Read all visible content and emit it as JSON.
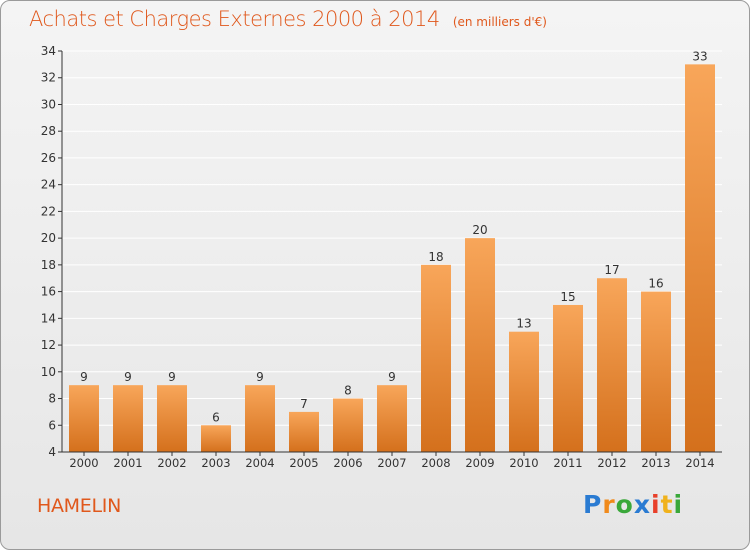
{
  "title": "Achats et Charges Externes 2000 à 2014",
  "subtitle": "(en milliers d'€)",
  "commune": "HAMELIN",
  "logo": {
    "letters": [
      "P",
      "r",
      "o",
      "x",
      "i",
      "t",
      "i"
    ]
  },
  "colors": {
    "title": "#e0581c",
    "bar_top": "#f8a65a",
    "bar_bottom": "#d4701c",
    "axis": "#333333",
    "grid": "#ffffff"
  },
  "chart_data": {
    "type": "bar",
    "title": "Achats et Charges Externes 2000 à 2014",
    "subtitle": "(en milliers d'€)",
    "categories": [
      "2000",
      "2001",
      "2002",
      "2003",
      "2004",
      "2005",
      "2006",
      "2007",
      "2008",
      "2009",
      "2010",
      "2011",
      "2012",
      "2013",
      "2014"
    ],
    "values": [
      9,
      9,
      9,
      6,
      9,
      7,
      8,
      9,
      18,
      20,
      13,
      15,
      17,
      16,
      33
    ],
    "ylim": [
      4,
      34
    ],
    "yticks": [
      4,
      6,
      8,
      10,
      12,
      14,
      16,
      18,
      20,
      22,
      24,
      26,
      28,
      30,
      32,
      34
    ],
    "grid": true,
    "data_labels": true
  }
}
